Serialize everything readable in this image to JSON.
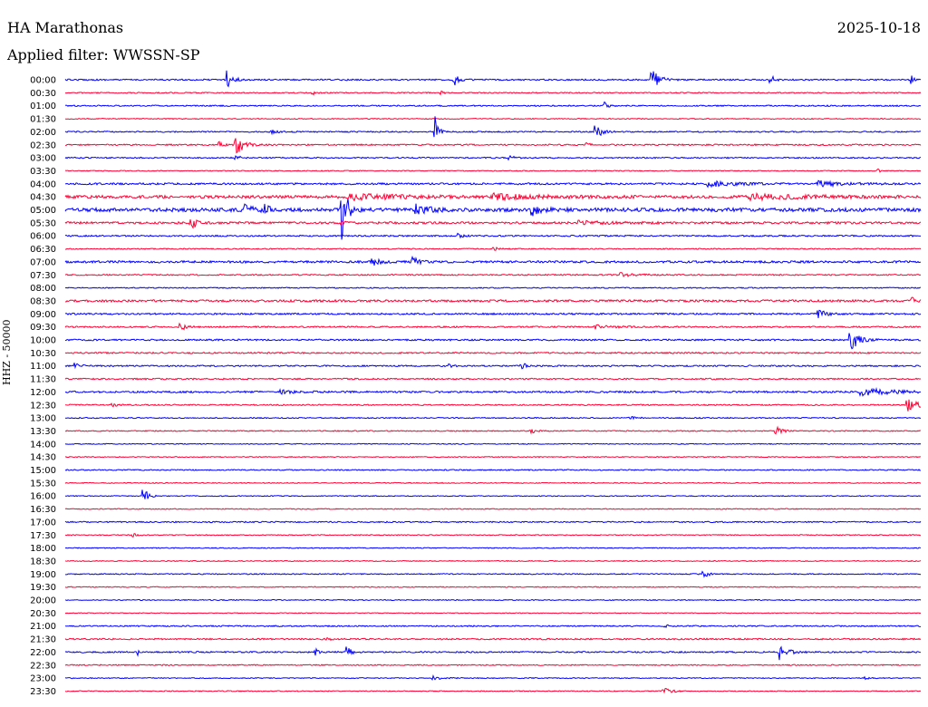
{
  "header": {
    "station": "HA Marathonas",
    "date": "2025-10-18",
    "filter": "Applied filter: WWSSN-SP"
  },
  "chart_data": {
    "type": "line",
    "title": "HA Marathonas",
    "subtitle": "Applied filter: WWSSN-SP",
    "ylabel": "HHZ - 50000",
    "xlabel": "",
    "colors": {
      "even": "#0000ff",
      "odd": "#ff0033"
    },
    "rows": [
      {
        "label": "00:00",
        "noise": 0.8,
        "events": [
          {
            "x": 0.19,
            "amp": 10,
            "w": 0.006
          },
          {
            "x": 0.455,
            "amp": 6,
            "w": 0.006
          },
          {
            "x": 0.686,
            "amp": 14,
            "w": 0.007
          },
          {
            "x": 0.825,
            "amp": 5,
            "w": 0.004
          },
          {
            "x": 0.99,
            "amp": 4,
            "w": 0.003
          }
        ]
      },
      {
        "label": "00:30",
        "noise": 0.6,
        "events": [
          {
            "x": 0.29,
            "amp": 2,
            "w": 0.003
          },
          {
            "x": 0.44,
            "amp": 2,
            "w": 0.003
          }
        ]
      },
      {
        "label": "01:00",
        "noise": 0.7,
        "events": [
          {
            "x": 0.63,
            "amp": 4,
            "w": 0.004
          }
        ]
      },
      {
        "label": "01:30",
        "noise": 0.5,
        "events": []
      },
      {
        "label": "02:00",
        "noise": 0.7,
        "events": [
          {
            "x": 0.24,
            "amp": 2,
            "w": 0.01
          },
          {
            "x": 0.433,
            "amp": 18,
            "w": 0.003
          },
          {
            "x": 0.62,
            "amp": 9,
            "w": 0.006
          }
        ]
      },
      {
        "label": "02:30",
        "noise": 0.8,
        "events": [
          {
            "x": 0.18,
            "amp": 3,
            "w": 0.005
          },
          {
            "x": 0.2,
            "amp": 12,
            "w": 0.008
          },
          {
            "x": 0.61,
            "amp": 2,
            "w": 0.004
          }
        ]
      },
      {
        "label": "03:00",
        "noise": 0.7,
        "events": [
          {
            "x": 0.2,
            "amp": 6,
            "w": 0.003
          },
          {
            "x": 0.52,
            "amp": 3,
            "w": 0.004
          }
        ]
      },
      {
        "label": "03:30",
        "noise": 0.5,
        "events": [
          {
            "x": 0.95,
            "amp": 2,
            "w": 0.003
          }
        ]
      },
      {
        "label": "04:00",
        "noise": 1.0,
        "events": [
          {
            "x": 0.75,
            "amp": 3,
            "w": 0.03
          },
          {
            "x": 0.88,
            "amp": 3,
            "w": 0.03
          }
        ]
      },
      {
        "label": "04:30",
        "noise": 1.6,
        "events": [
          {
            "x": 0.33,
            "amp": 3,
            "w": 0.06
          },
          {
            "x": 0.5,
            "amp": 3,
            "w": 0.05
          },
          {
            "x": 0.8,
            "amp": 3,
            "w": 0.06
          }
        ]
      },
      {
        "label": "05:00",
        "noise": 2.0,
        "events": [
          {
            "x": 0.21,
            "amp": 5,
            "w": 0.01
          },
          {
            "x": 0.232,
            "amp": 6,
            "w": 0.006
          },
          {
            "x": 0.323,
            "amp": 48,
            "w": 0.005
          },
          {
            "x": 0.41,
            "amp": 6,
            "w": 0.012
          },
          {
            "x": 0.545,
            "amp": 6,
            "w": 0.01
          }
        ]
      },
      {
        "label": "05:30",
        "noise": 1.2,
        "events": [
          {
            "x": 0.147,
            "amp": 9,
            "w": 0.005
          },
          {
            "x": 0.323,
            "amp": 3,
            "w": 0.004
          },
          {
            "x": 0.6,
            "amp": 2,
            "w": 0.03
          }
        ]
      },
      {
        "label": "06:00",
        "noise": 0.8,
        "events": [
          {
            "x": 0.46,
            "amp": 2,
            "w": 0.006
          }
        ]
      },
      {
        "label": "06:30",
        "noise": 0.6,
        "events": [
          {
            "x": 0.5,
            "amp": 2,
            "w": 0.006
          }
        ]
      },
      {
        "label": "07:00",
        "noise": 1.2,
        "events": [
          {
            "x": 0.36,
            "amp": 4,
            "w": 0.008
          },
          {
            "x": 0.406,
            "amp": 5,
            "w": 0.008
          }
        ]
      },
      {
        "label": "07:30",
        "noise": 0.7,
        "events": [
          {
            "x": 0.65,
            "amp": 2,
            "w": 0.02
          }
        ]
      },
      {
        "label": "08:00",
        "noise": 0.6,
        "events": []
      },
      {
        "label": "08:30",
        "noise": 1.2,
        "events": [
          {
            "x": 0.99,
            "amp": 3,
            "w": 0.005
          }
        ]
      },
      {
        "label": "09:00",
        "noise": 0.9,
        "events": [
          {
            "x": 0.88,
            "amp": 5,
            "w": 0.008
          }
        ]
      },
      {
        "label": "09:30",
        "noise": 0.8,
        "events": [
          {
            "x": 0.135,
            "amp": 5,
            "w": 0.005
          },
          {
            "x": 0.62,
            "amp": 2,
            "w": 0.02
          }
        ]
      },
      {
        "label": "10:00",
        "noise": 0.9,
        "events": [
          {
            "x": 0.918,
            "amp": 13,
            "w": 0.009
          }
        ]
      },
      {
        "label": "10:30",
        "noise": 0.8,
        "events": []
      },
      {
        "label": "11:00",
        "noise": 0.8,
        "events": [
          {
            "x": 0.012,
            "amp": 3,
            "w": 0.006
          },
          {
            "x": 0.45,
            "amp": 2,
            "w": 0.003
          },
          {
            "x": 0.533,
            "amp": 7,
            "w": 0.003
          }
        ]
      },
      {
        "label": "11:30",
        "noise": 0.8,
        "events": []
      },
      {
        "label": "12:00",
        "noise": 1.0,
        "events": [
          {
            "x": 0.25,
            "amp": 2,
            "w": 0.02
          },
          {
            "x": 0.93,
            "amp": 4,
            "w": 0.04
          }
        ]
      },
      {
        "label": "12:30",
        "noise": 0.7,
        "events": [
          {
            "x": 0.055,
            "amp": 3,
            "w": 0.004
          },
          {
            "x": 0.985,
            "amp": 7,
            "w": 0.012
          }
        ]
      },
      {
        "label": "13:00",
        "noise": 0.6,
        "events": [
          {
            "x": 0.66,
            "amp": 2,
            "w": 0.006
          }
        ]
      },
      {
        "label": "13:30",
        "noise": 0.6,
        "events": [
          {
            "x": 0.545,
            "amp": 3,
            "w": 0.004
          },
          {
            "x": 0.83,
            "amp": 6,
            "w": 0.006
          }
        ]
      },
      {
        "label": "14:00",
        "noise": 0.5,
        "events": []
      },
      {
        "label": "14:30",
        "noise": 0.5,
        "events": []
      },
      {
        "label": "15:00",
        "noise": 0.6,
        "events": []
      },
      {
        "label": "15:30",
        "noise": 0.5,
        "events": []
      },
      {
        "label": "16:00",
        "noise": 0.5,
        "events": [
          {
            "x": 0.092,
            "amp": 11,
            "w": 0.004
          }
        ]
      },
      {
        "label": "16:30",
        "noise": 0.5,
        "events": []
      },
      {
        "label": "17:00",
        "noise": 0.7,
        "events": []
      },
      {
        "label": "17:30",
        "noise": 0.5,
        "events": [
          {
            "x": 0.08,
            "amp": 2,
            "w": 0.004
          }
        ]
      },
      {
        "label": "18:00",
        "noise": 0.5,
        "events": []
      },
      {
        "label": "18:30",
        "noise": 0.5,
        "events": []
      },
      {
        "label": "19:00",
        "noise": 0.6,
        "events": [
          {
            "x": 0.746,
            "amp": 5,
            "w": 0.005
          }
        ]
      },
      {
        "label": "19:30",
        "noise": 0.5,
        "events": []
      },
      {
        "label": "20:00",
        "noise": 0.5,
        "events": []
      },
      {
        "label": "20:30",
        "noise": 0.4,
        "events": []
      },
      {
        "label": "21:00",
        "noise": 0.7,
        "events": [
          {
            "x": 0.7,
            "amp": 2,
            "w": 0.004
          }
        ]
      },
      {
        "label": "21:30",
        "noise": 0.8,
        "events": [
          {
            "x": 0.3,
            "amp": 3,
            "w": 0.006
          }
        ]
      },
      {
        "label": "22:00",
        "noise": 0.8,
        "events": [
          {
            "x": 0.085,
            "amp": 3,
            "w": 0.003
          },
          {
            "x": 0.293,
            "amp": 3,
            "w": 0.004
          },
          {
            "x": 0.33,
            "amp": 7,
            "w": 0.004
          },
          {
            "x": 0.835,
            "amp": 10,
            "w": 0.008
          }
        ]
      },
      {
        "label": "22:30",
        "noise": 0.6,
        "events": []
      },
      {
        "label": "23:00",
        "noise": 0.5,
        "events": [
          {
            "x": 0.43,
            "amp": 2,
            "w": 0.01
          },
          {
            "x": 0.935,
            "amp": 2,
            "w": 0.005
          }
        ]
      },
      {
        "label": "23:30",
        "noise": 0.5,
        "events": [
          {
            "x": 0.7,
            "amp": 4,
            "w": 0.008
          }
        ]
      }
    ]
  }
}
